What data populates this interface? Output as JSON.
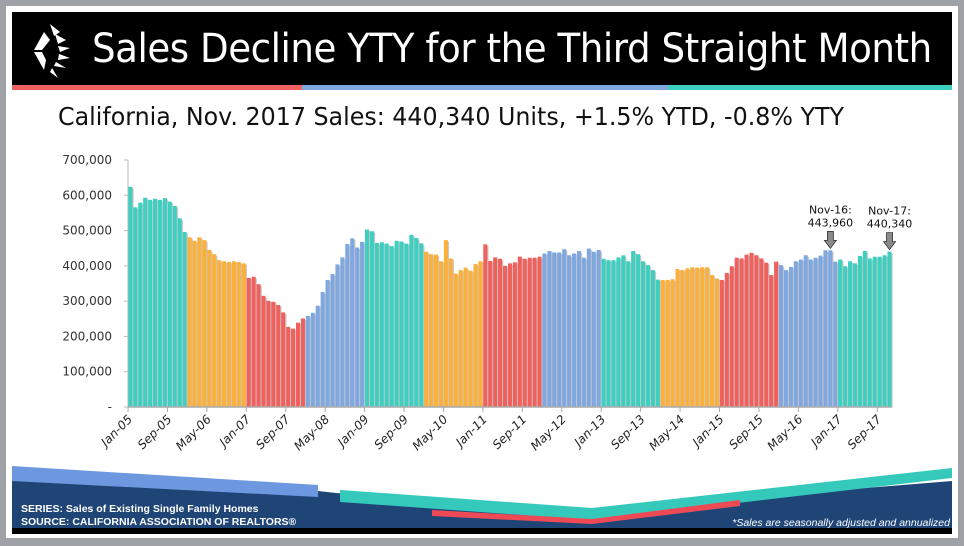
{
  "header": {
    "title": "Sales Decline YTY for the Third Straight Month",
    "subtitle": "California, Nov. 2017 Sales: 440,340 Units, +1.5% YTD, -0.8% YTY"
  },
  "footer": {
    "series": "SERIES: Sales of Existing Single Family Homes",
    "source": "SOURCE:  CALIFORNIA ASSOCIATION OF REALTORS®",
    "note": "*Sales are seasonally adjusted and annualized"
  },
  "colors": {
    "teal": "#3ecfc0",
    "orange": "#fbb03b",
    "red": "#f0605d",
    "blue": "#7fa7e0",
    "navy": "#1f4577"
  },
  "chart_data": {
    "type": "bar",
    "title": "",
    "xlabel": "",
    "ylabel": "",
    "ylim": [
      0,
      700000
    ],
    "yticks": [
      "-",
      "100,000",
      "200,000",
      "300,000",
      "400,000",
      "500,000",
      "600,000",
      "700,000"
    ],
    "xtick_labels": [
      "Jan-05",
      "Sep-05",
      "May-06",
      "Jan-07",
      "Sep-07",
      "May-08",
      "Jan-09",
      "Sep-09",
      "May-10",
      "Jan-11",
      "Sep-11",
      "May-12",
      "Jan-13",
      "Sep-13",
      "May-14",
      "Jan-15",
      "Sep-15",
      "May-16",
      "Jan-17",
      "Sep-17"
    ],
    "start": "Jan-05",
    "end": "Nov-17",
    "units": "thousands",
    "years": [
      {
        "year": 2005,
        "color": "teal",
        "values": [
          624,
          566,
          579,
          593,
          587,
          590,
          587,
          592,
          582,
          570,
          535,
          496
        ]
      },
      {
        "year": 2006,
        "color": "orange",
        "values": [
          481,
          471,
          481,
          473,
          445,
          433,
          416,
          413,
          411,
          413,
          411,
          407
        ]
      },
      {
        "year": 2007,
        "color": "red",
        "values": [
          366,
          369,
          348,
          315,
          301,
          298,
          289,
          268,
          227,
          222,
          239,
          251
        ]
      },
      {
        "year": 2008,
        "color": "blue",
        "values": [
          258,
          267,
          287,
          326,
          360,
          377,
          404,
          424,
          462,
          478,
          452,
          468
        ]
      },
      {
        "year": 2009,
        "color": "teal",
        "values": [
          503,
          498,
          465,
          467,
          463,
          456,
          471,
          469,
          463,
          488,
          479,
          464
        ]
      },
      {
        "year": 2010,
        "color": "orange",
        "values": [
          440,
          433,
          432,
          413,
          473,
          421,
          378,
          388,
          395,
          386,
          405,
          413
        ]
      },
      {
        "year": 2011,
        "color": "red",
        "values": [
          461,
          414,
          424,
          420,
          400,
          407,
          410,
          426,
          420,
          423,
          423,
          426
        ]
      },
      {
        "year": 2012,
        "color": "blue",
        "values": [
          435,
          442,
          438,
          438,
          447,
          430,
          435,
          442,
          423,
          449,
          440,
          445
        ]
      },
      {
        "year": 2013,
        "color": "teal",
        "values": [
          420,
          416,
          416,
          424,
          430,
          413,
          442,
          433,
          413,
          402,
          388,
          361
        ]
      },
      {
        "year": 2014,
        "color": "orange",
        "values": [
          360,
          360,
          362,
          391,
          388,
          393,
          396,
          395,
          396,
          396,
          374,
          364
        ]
      },
      {
        "year": 2015,
        "color": "red",
        "values": [
          360,
          380,
          399,
          423,
          421,
          432,
          437,
          430,
          421,
          409,
          374,
          412
        ]
      },
      {
        "year": 2016,
        "color": "blue",
        "values": [
          402,
          388,
          397,
          413,
          418,
          430,
          418,
          423,
          429,
          444,
          443.96,
          412
        ]
      },
      {
        "year": 2017,
        "color": "teal",
        "values": [
          418,
          399,
          413,
          407,
          428,
          442,
          421,
          426,
          426,
          430,
          440.34
        ]
      }
    ],
    "annotations": [
      {
        "month": "Nov-16",
        "label_line1": "Nov-16:",
        "label_line2": "443,960"
      },
      {
        "month": "Nov-17",
        "label_line1": "Nov-17:",
        "label_line2": "440,340"
      }
    ],
    "legend": "none",
    "grid": false
  }
}
